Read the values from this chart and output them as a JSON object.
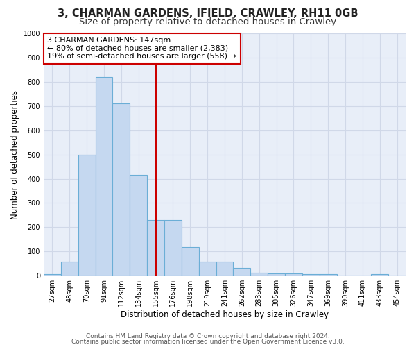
{
  "title1": "3, CHARMAN GARDENS, IFIELD, CRAWLEY, RH11 0GB",
  "title2": "Size of property relative to detached houses in Crawley",
  "xlabel": "Distribution of detached houses by size in Crawley",
  "ylabel": "Number of detached properties",
  "categories": [
    "27sqm",
    "48sqm",
    "70sqm",
    "91sqm",
    "112sqm",
    "134sqm",
    "155sqm",
    "176sqm",
    "198sqm",
    "219sqm",
    "241sqm",
    "262sqm",
    "283sqm",
    "305sqm",
    "326sqm",
    "347sqm",
    "369sqm",
    "390sqm",
    "411sqm",
    "433sqm",
    "454sqm"
  ],
  "values": [
    5,
    57,
    500,
    820,
    710,
    415,
    230,
    230,
    118,
    57,
    57,
    32,
    12,
    10,
    10,
    5,
    5,
    0,
    0,
    5,
    0
  ],
  "bar_color": "#c5d8f0",
  "bar_edge_color": "#6baed6",
  "plot_bg_color": "#e8eef8",
  "fig_bg_color": "#ffffff",
  "grid_color": "#d0d8e8",
  "vline_color": "#cc0000",
  "vline_x_index": 6,
  "annotation_text": "3 CHARMAN GARDENS: 147sqm\n← 80% of detached houses are smaller (2,383)\n19% of semi-detached houses are larger (558) →",
  "annotation_box_facecolor": "#ffffff",
  "annotation_box_edgecolor": "#cc0000",
  "ylim": [
    0,
    1000
  ],
  "yticks": [
    0,
    100,
    200,
    300,
    400,
    500,
    600,
    700,
    800,
    900,
    1000
  ],
  "footer1": "Contains HM Land Registry data © Crown copyright and database right 2024.",
  "footer2": "Contains public sector information licensed under the Open Government Licence v3.0.",
  "title1_fontsize": 10.5,
  "title2_fontsize": 9.5,
  "annotation_fontsize": 8,
  "tick_fontsize": 7,
  "ylabel_fontsize": 8.5,
  "xlabel_fontsize": 8.5,
  "footer_fontsize": 6.5
}
